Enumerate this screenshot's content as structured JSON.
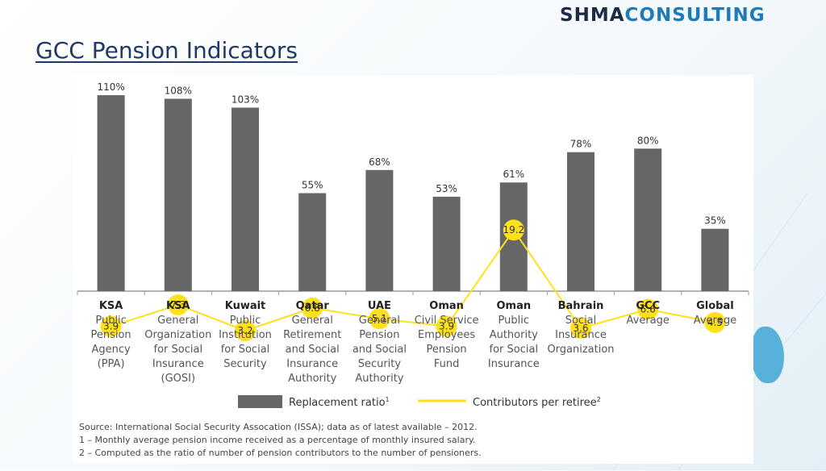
{
  "logo": {
    "part1": "SHMA",
    "part2": "CONSULTING"
  },
  "page_title": "GCC Pension Indicators",
  "chart_data": {
    "type": "bar",
    "categories": [
      [
        "KSA",
        "Public",
        "Pension",
        "Agency",
        "(PPA)"
      ],
      [
        "KSA",
        "General",
        "Organization",
        "for Social",
        "Insurance",
        "(GOSI)"
      ],
      [
        "Kuwait",
        "Public",
        "Institution",
        "for Social",
        "Security"
      ],
      [
        "Qatar",
        "General",
        "Retirement",
        "and Social",
        "Insurance",
        "Authority"
      ],
      [
        "UAE",
        "General",
        "Pension",
        "and Social",
        "Security",
        "Authority"
      ],
      [
        "Oman",
        "Civil Service",
        "Employees",
        "Pension",
        "Fund"
      ],
      [
        "Oman",
        "Public",
        "Authority",
        "for Social",
        "Insurance"
      ],
      [
        "Bahrain",
        "Social",
        "Insurance",
        "Organization"
      ],
      [
        "GCC",
        "Average"
      ],
      [
        "Global",
        "Average"
      ]
    ],
    "series": [
      {
        "name": "Replacement ratio",
        "name_sup": "1",
        "type": "bar",
        "color": "#666666",
        "values": [
          110,
          108,
          103,
          55,
          68,
          53,
          61,
          78,
          80,
          35
        ],
        "labels": [
          "110%",
          "108%",
          "103%",
          "55%",
          "68%",
          "53%",
          "61%",
          "78%",
          "80%",
          "35%"
        ]
      },
      {
        "name": "Contributors per retiree",
        "name_sup": "2",
        "type": "line",
        "color": "#ffe11a",
        "values": [
          3.9,
          7.3,
          3.2,
          6.8,
          5.1,
          3.9,
          19.2,
          3.6,
          6.6,
          4.5
        ],
        "labels": [
          "3.9",
          "7.3",
          "3.2",
          "6.8",
          "5.1",
          "3.9",
          "19.2",
          "3.6",
          "6.6",
          "4.5"
        ]
      }
    ],
    "grid": false,
    "legend": "bottom"
  },
  "source": {
    "line1": "Source: International Social Security Assocation (ISSA); data as of latest available – 2012.",
    "line2": "1 – Monthly average pension income received as a percentage of monthly insured salary.",
    "line3": "2 – Computed as the ratio of number of pension contributors to the number of pensioners."
  }
}
